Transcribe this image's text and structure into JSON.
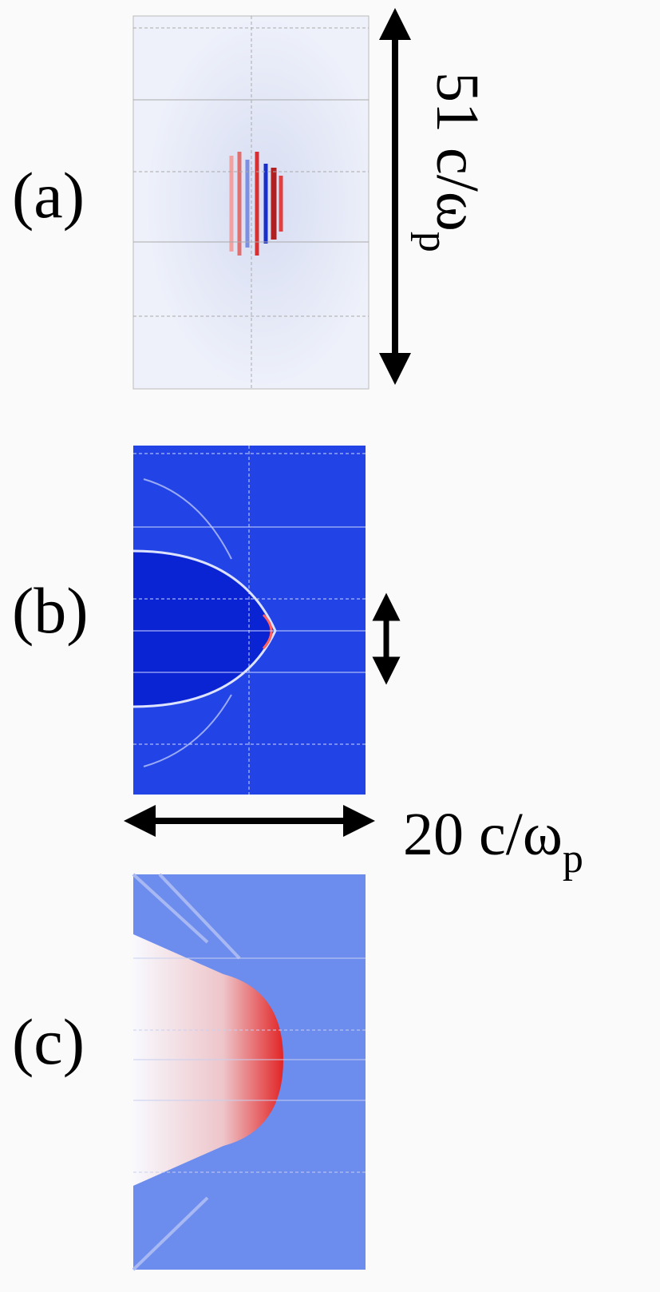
{
  "panels": [
    {
      "label": "(a)"
    },
    {
      "label": "(b)"
    },
    {
      "label": "(c)"
    }
  ],
  "scale_bars": [
    {
      "label": "51 c/ω",
      "subscript": "p"
    },
    {
      "label": "20 c/ω",
      "subscript": "p"
    }
  ]
}
